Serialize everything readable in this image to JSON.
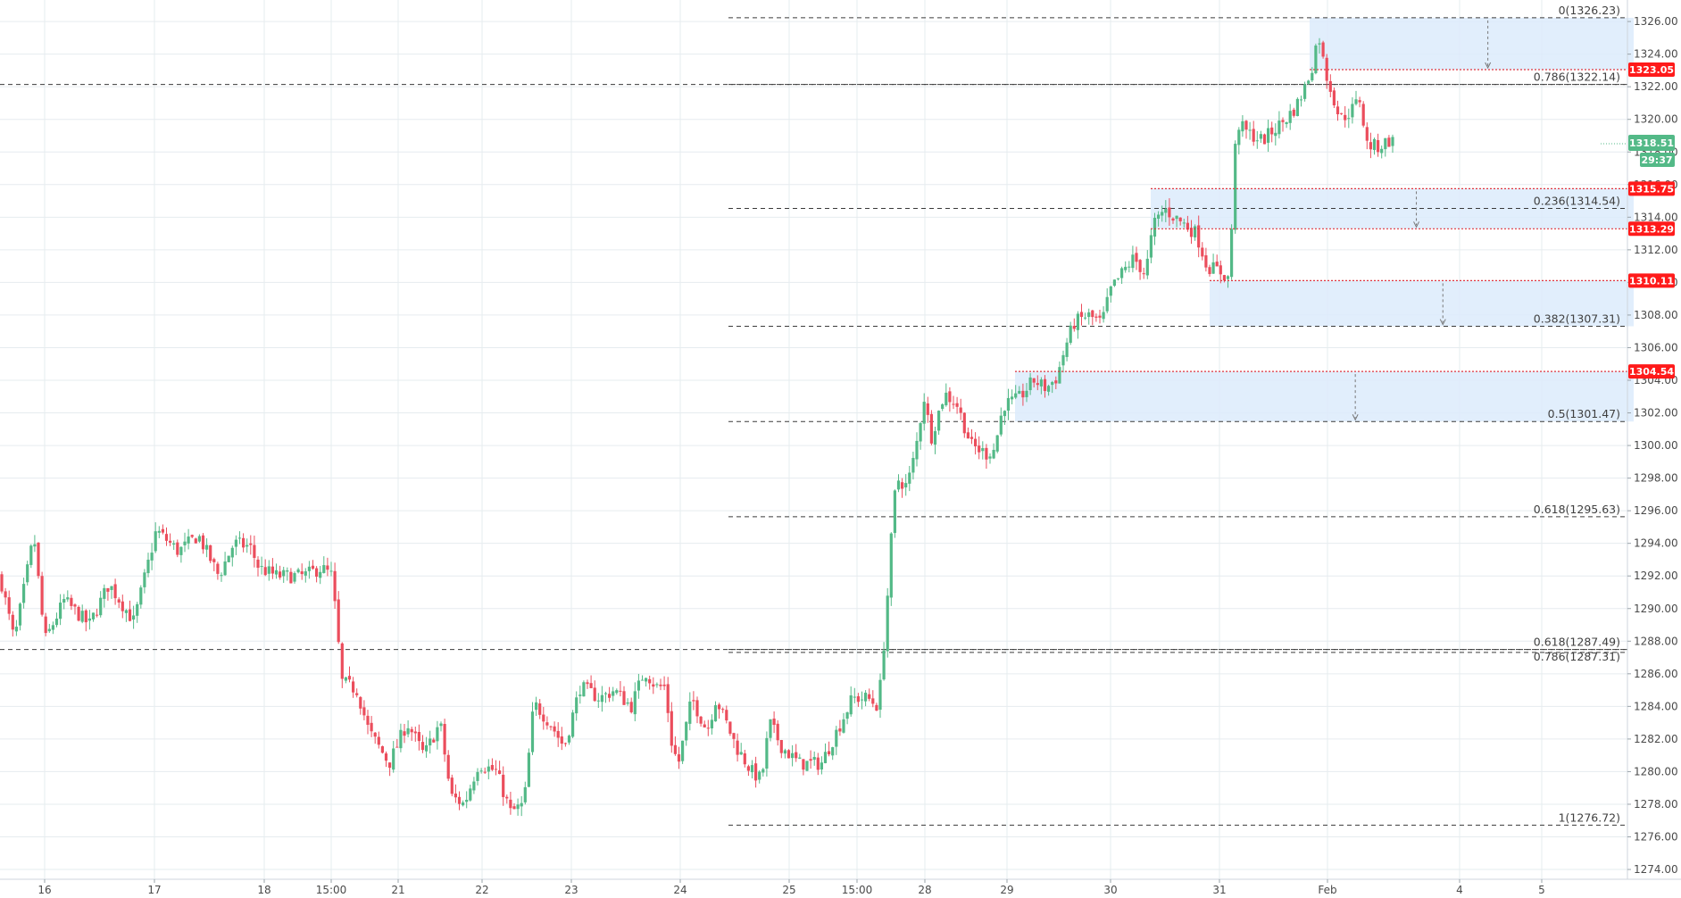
{
  "colors": {
    "up": "#53b987",
    "down": "#eb4d5c",
    "grid": "#e6ecef",
    "fib_line": "#3a3a3a",
    "zone_fill": "#dcebfc",
    "level_line": "#e0343f",
    "price_tag": "#ff1a1a",
    "last_tag": "#53b987"
  },
  "chart_data": {
    "type": "candlestick",
    "symbol_hint": "",
    "y_axis": {
      "range": [
        1274,
        1327
      ],
      "ticks": [
        1274,
        1276,
        1278,
        1280,
        1282,
        1284,
        1286,
        1288,
        1290,
        1292,
        1294,
        1296,
        1298,
        1300,
        1302,
        1304,
        1306,
        1308,
        1310,
        1312,
        1314,
        1316,
        1318,
        1320,
        1322,
        1324,
        1326
      ],
      "tick_labels": [
        "1274.00",
        "1276.00",
        "1278.00",
        "1280.00",
        "1282.00",
        "1284.00",
        "1286.00",
        "1288.00",
        "1290.00",
        "1292.00",
        "1294.00",
        "1296.00",
        "1298.00",
        "1300.00",
        "1302.00",
        "1304.00",
        "1306.00",
        "1308.00",
        "1310.00",
        "1312.00",
        "1314.00",
        "1316.00",
        "1318.00",
        "1320.00",
        "1322.00",
        "1324.00",
        "1326.00"
      ]
    },
    "x_axis": {
      "time_range": [
        0,
        1830
      ],
      "ticks": [
        {
          "t": 50,
          "label": "16"
        },
        {
          "t": 173,
          "label": "17"
        },
        {
          "t": 296,
          "label": "18"
        },
        {
          "t": 371,
          "label": "15:00"
        },
        {
          "t": 446,
          "label": "21"
        },
        {
          "t": 540,
          "label": "22"
        },
        {
          "t": 640,
          "label": "23"
        },
        {
          "t": 762,
          "label": "24"
        },
        {
          "t": 884,
          "label": "25"
        },
        {
          "t": 960,
          "label": "15:00"
        },
        {
          "t": 1036,
          "label": "28"
        },
        {
          "t": 1128,
          "label": "29"
        },
        {
          "t": 1244,
          "label": "30"
        },
        {
          "t": 1366,
          "label": "31"
        },
        {
          "t": 1487,
          "label": "Feb"
        },
        {
          "t": 1635,
          "label": "4"
        },
        {
          "t": 1727,
          "label": "5"
        }
      ]
    },
    "candle_path": [
      [
        0,
        1292
      ],
      [
        16,
        1288
      ],
      [
        38,
        1294.5
      ],
      [
        50,
        1288
      ],
      [
        72,
        1290.5
      ],
      [
        100,
        1289
      ],
      [
        122,
        1291.5
      ],
      [
        150,
        1289.2
      ],
      [
        175,
        1294.8
      ],
      [
        200,
        1293.5
      ],
      [
        222,
        1294.5
      ],
      [
        245,
        1292
      ],
      [
        262,
        1294
      ],
      [
        280,
        1293.8
      ],
      [
        290,
        1292.5
      ],
      [
        310,
        1292
      ],
      [
        340,
        1292
      ],
      [
        360,
        1292.5
      ],
      [
        372,
        1292
      ],
      [
        383,
        1285.5
      ],
      [
        400,
        1285
      ],
      [
        413,
        1282.5
      ],
      [
        436,
        1280.5
      ],
      [
        456,
        1283
      ],
      [
        475,
        1281
      ],
      [
        493,
        1283
      ],
      [
        505,
        1278.5
      ],
      [
        520,
        1278
      ],
      [
        536,
        1280.5
      ],
      [
        556,
        1280
      ],
      [
        572,
        1277.5
      ],
      [
        587,
        1278
      ],
      [
        598,
        1284.2
      ],
      [
        616,
        1283
      ],
      [
        632,
        1281.5
      ],
      [
        650,
        1285.2
      ],
      [
        672,
        1284.5
      ],
      [
        688,
        1285
      ],
      [
        707,
        1284
      ],
      [
        722,
        1286.2
      ],
      [
        735,
        1285.2
      ],
      [
        745,
        1285.2
      ],
      [
        753,
        1281.5
      ],
      [
        760,
        1280.5
      ],
      [
        775,
        1284.5
      ],
      [
        792,
        1282.5
      ],
      [
        802,
        1284.5
      ],
      [
        825,
        1281.5
      ],
      [
        842,
        1280
      ],
      [
        853,
        1279.5
      ],
      [
        862,
        1283
      ],
      [
        876,
        1281.5
      ],
      [
        895,
        1280.5
      ],
      [
        920,
        1280.5
      ],
      [
        935,
        1282.2
      ],
      [
        955,
        1284.5
      ],
      [
        972,
        1284.5
      ],
      [
        984,
        1284
      ],
      [
        992,
        1289
      ],
      [
        998,
        1294
      ],
      [
        1004,
        1298
      ],
      [
        1016,
        1297.5
      ],
      [
        1025,
        1299.5
      ],
      [
        1035,
        1303
      ],
      [
        1043,
        1300.5
      ],
      [
        1058,
        1303.2
      ],
      [
        1072,
        1302.5
      ],
      [
        1088,
        1300
      ],
      [
        1105,
        1299.5
      ],
      [
        1114,
        1299.8
      ],
      [
        1124,
        1302.5
      ],
      [
        1140,
        1302.8
      ],
      [
        1158,
        1304
      ],
      [
        1172,
        1303.5
      ],
      [
        1184,
        1304.2
      ],
      [
        1193,
        1306
      ],
      [
        1203,
        1307.5
      ],
      [
        1218,
        1308
      ],
      [
        1234,
        1307.5
      ],
      [
        1244,
        1309.5
      ],
      [
        1256,
        1310.5
      ],
      [
        1270,
        1311.5
      ],
      [
        1283,
        1310.5
      ],
      [
        1292,
        1313.5
      ],
      [
        1304,
        1314.5
      ],
      [
        1316,
        1314
      ],
      [
        1326,
        1313.6
      ],
      [
        1340,
        1313
      ],
      [
        1352,
        1311
      ],
      [
        1366,
        1310.7
      ],
      [
        1377,
        1310.2
      ],
      [
        1385,
        1319.8
      ],
      [
        1397,
        1319.2
      ],
      [
        1414,
        1318.7
      ],
      [
        1430,
        1319.5
      ],
      [
        1440,
        1320
      ],
      [
        1452,
        1320.8
      ],
      [
        1462,
        1322
      ],
      [
        1470,
        1323.3
      ],
      [
        1477,
        1325.3
      ],
      [
        1484,
        1323
      ],
      [
        1493,
        1321.5
      ],
      [
        1501,
        1320
      ],
      [
        1513,
        1320.5
      ],
      [
        1524,
        1321.3
      ],
      [
        1530,
        1318.5
      ],
      [
        1543,
        1318.3
      ],
      [
        1556,
        1318.7
      ],
      [
        1563,
        1318.6
      ]
    ],
    "fib_retracement": [
      {
        "ratio": "0",
        "value": 1326.23,
        "label": "0(1326.23)"
      },
      {
        "ratio": "0.786",
        "value": 1322.14,
        "label": "0.786(1322.14)"
      },
      {
        "ratio": "0.236",
        "value": 1314.54,
        "label": "0.236(1314.54)"
      },
      {
        "ratio": "0.382",
        "value": 1307.31,
        "label": "0.382(1307.31)"
      },
      {
        "ratio": "0.5",
        "value": 1301.47,
        "label": "0.5(1301.47)"
      },
      {
        "ratio": "0.618",
        "value": 1295.63,
        "label": "0.618(1295.63)"
      },
      {
        "ratio": "0.618",
        "value": 1287.49,
        "label": "0.618(1287.49)"
      },
      {
        "ratio": "0.786",
        "value": 1287.31,
        "label": "0.786(1287.31)"
      },
      {
        "ratio": "1",
        "value": 1276.72,
        "label": "1(1276.72)"
      }
    ],
    "long_dashed_levels": [
      1322.14,
      1287.49
    ],
    "zones": [
      {
        "t0": 1467,
        "t1": 1830,
        "top": 1326.23,
        "bottom": 1323.05
      },
      {
        "t0": 1289,
        "t1": 1830,
        "top": 1315.75,
        "bottom": 1313.29
      },
      {
        "t0": 1355,
        "t1": 1830,
        "top": 1310.11,
        "bottom": 1307.31
      },
      {
        "t0": 1137,
        "t1": 1830,
        "top": 1304.54,
        "bottom": 1301.47
      }
    ],
    "price_tags": [
      {
        "value": 1323.05,
        "label": "1323.05"
      },
      {
        "value": 1315.75,
        "label": "1315.75"
      },
      {
        "value": 1313.29,
        "label": "1313.29"
      },
      {
        "value": 1310.11,
        "label": "1310.11"
      },
      {
        "value": 1304.54,
        "label": "1304.54"
      }
    ],
    "last_price": {
      "value": 1318.51,
      "label": "1318.51",
      "countdown": "29:37"
    }
  }
}
